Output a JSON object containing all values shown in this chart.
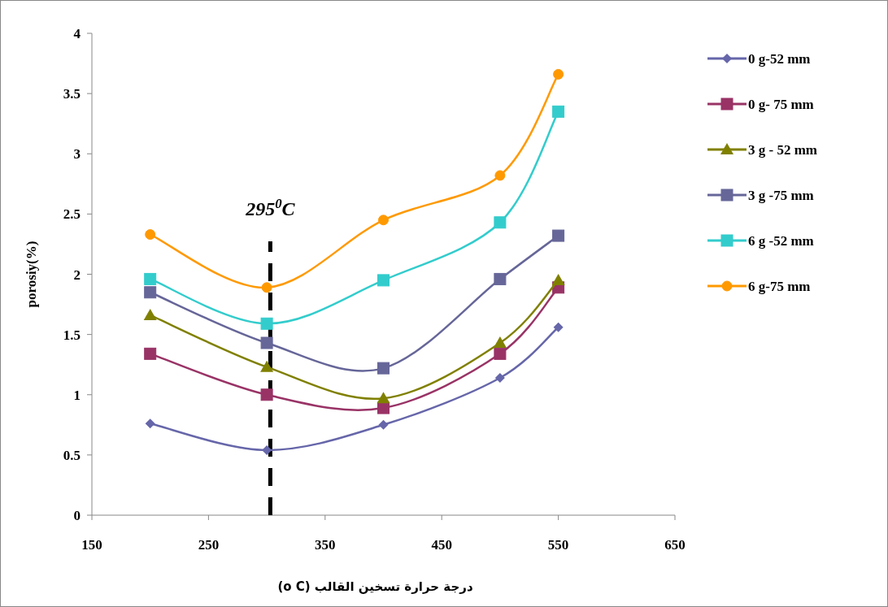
{
  "chart_data": {
    "type": "line",
    "xlabel": "درجة حرارة تسخين القالب (o C)",
    "ylabel": "porosiy(%)",
    "x": [
      200,
      300,
      400,
      500,
      550
    ],
    "series": [
      {
        "name": "0 g-52  mm",
        "color": "#6666aa",
        "marker": "diamond",
        "values": [
          0.76,
          0.54,
          0.75,
          1.14,
          1.56
        ]
      },
      {
        "name": "0 g- 75  mm",
        "color": "#993366",
        "marker": "square",
        "values": [
          1.34,
          1.0,
          0.89,
          1.34,
          1.89
        ]
      },
      {
        "name": "3 g - 52  mm",
        "color": "#808000",
        "marker": "triangle",
        "values": [
          1.66,
          1.23,
          0.97,
          1.43,
          1.95
        ]
      },
      {
        "name": "3 g -75  mm",
        "color": "#666699",
        "marker": "square",
        "values": [
          1.85,
          1.43,
          1.22,
          1.96,
          2.32
        ]
      },
      {
        "name": "6 g -52  mm",
        "color": "#33cccc",
        "marker": "square",
        "values": [
          1.96,
          1.59,
          1.95,
          2.43,
          3.35
        ]
      },
      {
        "name": "6 g-75  mm",
        "color": "#ff9900",
        "marker": "circle",
        "values": [
          2.33,
          1.89,
          2.45,
          2.82,
          3.66
        ]
      }
    ],
    "xlim": [
      150,
      650
    ],
    "xticks": [
      150,
      250,
      350,
      450,
      550,
      650
    ],
    "ylim": [
      0,
      4
    ],
    "yticks": [
      0,
      0.5,
      1,
      1.5,
      2,
      2.5,
      3,
      3.5,
      4
    ],
    "ref_lines": [
      {
        "axis": "x",
        "value": 303,
        "label": "295$^{0}$C",
        "color": "#000000",
        "line_style": "dashed"
      }
    ],
    "grid": false,
    "legend": "right"
  }
}
